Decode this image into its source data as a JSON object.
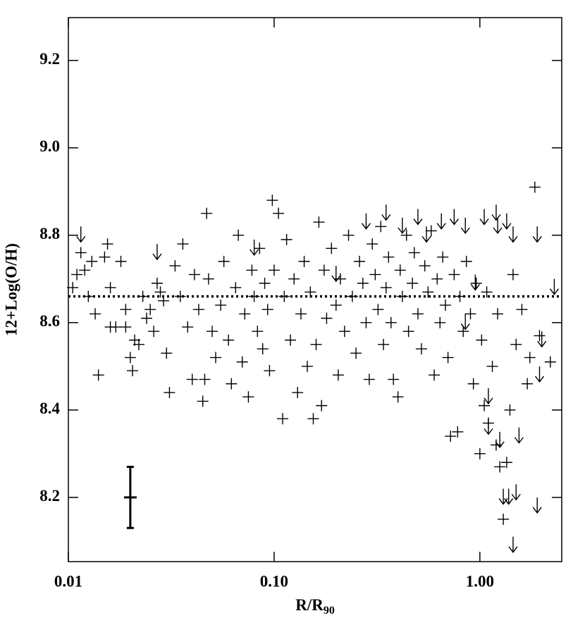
{
  "chart_data": {
    "type": "scatter",
    "x_label": "R/R",
    "x_label_subscript": "90",
    "y_label": "12+Log(O/H)",
    "x_scale": "log",
    "xlim": [
      0.01,
      2.5
    ],
    "xticks": [
      0.01,
      {
        "value": 0.1,
        "label": "0.10"
      },
      {
        "value": 1,
        "label": "1.00"
      }
    ],
    "ylim": [
      8.053,
      9.298
    ],
    "yticks": [
      8.2,
      8.4,
      8.6,
      8.8,
      {
        "value": 9,
        "label": "9.0"
      },
      9.2
    ],
    "color": "#000000",
    "reference_line": 8.66,
    "error_bar": {
      "x": 0.02,
      "y": 8.2,
      "error": 0.07
    },
    "series": [
      {
        "marker": "plus",
        "x": [
          0.0105,
          0.011,
          0.0115,
          0.012,
          0.0125,
          0.013,
          0.0135,
          0.014,
          0.015,
          0.0155,
          0.016,
          0.016,
          0.017,
          0.018,
          0.019,
          0.019,
          0.02,
          0.0205,
          0.021,
          0.022,
          0.023,
          0.024,
          0.025,
          0.026,
          0.027,
          0.028,
          0.029,
          0.03,
          0.031,
          0.033,
          0.035,
          0.036,
          0.038,
          0.04,
          0.041,
          0.043,
          0.045,
          0.046,
          0.047,
          0.048,
          0.05,
          0.052,
          0.055,
          0.057,
          0.06,
          0.062,
          0.065,
          0.067,
          0.07,
          0.072,
          0.075,
          0.078,
          0.08,
          0.083,
          0.085,
          0.088,
          0.09,
          0.093,
          0.095,
          0.098,
          0.1,
          0.105,
          0.11,
          0.112,
          0.115,
          0.12,
          0.125,
          0.13,
          0.135,
          0.14,
          0.145,
          0.15,
          0.155,
          0.16,
          0.165,
          0.17,
          0.175,
          0.18,
          0.19,
          0.2,
          0.205,
          0.21,
          0.22,
          0.23,
          0.24,
          0.25,
          0.26,
          0.27,
          0.28,
          0.29,
          0.3,
          0.31,
          0.32,
          0.33,
          0.34,
          0.35,
          0.36,
          0.37,
          0.38,
          0.4,
          0.41,
          0.42,
          0.44,
          0.45,
          0.47,
          0.48,
          0.5,
          0.52,
          0.54,
          0.56,
          0.58,
          0.6,
          0.62,
          0.64,
          0.66,
          0.68,
          0.7,
          0.72,
          0.75,
          0.78,
          0.8,
          0.83,
          0.86,
          0.9,
          0.93,
          0.96,
          1.0,
          1.02,
          1.05,
          1.08,
          1.1,
          1.15,
          1.2,
          1.22,
          1.25,
          1.3,
          1.35,
          1.4,
          1.45,
          1.5,
          1.6,
          1.7,
          1.75,
          1.85,
          1.95,
          2.2
        ],
        "values": [
          8.68,
          8.71,
          8.76,
          8.72,
          8.66,
          8.74,
          8.62,
          8.48,
          8.75,
          8.78,
          8.68,
          8.59,
          8.59,
          8.74,
          8.63,
          8.59,
          8.52,
          8.49,
          8.56,
          8.55,
          8.66,
          8.61,
          8.63,
          8.58,
          8.69,
          8.67,
          8.65,
          8.53,
          8.44,
          8.73,
          8.66,
          8.78,
          8.59,
          8.47,
          8.71,
          8.63,
          8.42,
          8.47,
          8.85,
          8.7,
          8.58,
          8.52,
          8.64,
          8.74,
          8.56,
          8.46,
          8.68,
          8.8,
          8.51,
          8.62,
          8.43,
          8.72,
          8.66,
          8.58,
          8.77,
          8.54,
          8.69,
          8.63,
          8.49,
          8.88,
          8.72,
          8.85,
          8.38,
          8.66,
          8.79,
          8.56,
          8.7,
          8.44,
          8.62,
          8.74,
          8.5,
          8.67,
          8.38,
          8.55,
          8.83,
          8.41,
          8.72,
          8.61,
          8.77,
          8.64,
          8.48,
          8.7,
          8.58,
          8.8,
          8.66,
          8.53,
          8.74,
          8.69,
          8.6,
          8.47,
          8.78,
          8.71,
          8.63,
          8.82,
          8.55,
          8.68,
          8.75,
          8.6,
          8.47,
          8.43,
          8.72,
          8.66,
          8.8,
          8.58,
          8.69,
          8.76,
          8.62,
          8.54,
          8.73,
          8.67,
          8.81,
          8.48,
          8.7,
          8.6,
          8.75,
          8.64,
          8.52,
          8.34,
          8.71,
          8.35,
          8.66,
          8.58,
          8.74,
          8.62,
          8.46,
          8.69,
          8.3,
          8.56,
          8.41,
          8.67,
          8.37,
          8.5,
          8.32,
          8.62,
          8.27,
          8.15,
          8.28,
          8.4,
          8.71,
          8.55,
          8.63,
          8.46,
          8.52,
          8.91,
          8.57,
          8.51
        ]
      },
      {
        "marker": "arrow-down",
        "x": [
          0.0115,
          0.027,
          0.08,
          0.2,
          0.28,
          0.35,
          0.42,
          0.5,
          0.55,
          0.65,
          0.75,
          0.85,
          0.95,
          1.05,
          1.2,
          1.22,
          1.35,
          1.45,
          1.9,
          2.3,
          1.1,
          1.25,
          1.3,
          1.38,
          1.5,
          1.55,
          1.9,
          1.45,
          1.1,
          0.85,
          1.95,
          2.0
        ],
        "values": [
          8.82,
          8.78,
          8.79,
          8.73,
          8.85,
          8.87,
          8.84,
          8.86,
          8.82,
          8.85,
          8.86,
          8.84,
          8.71,
          8.86,
          8.87,
          8.84,
          8.85,
          8.82,
          8.82,
          8.7,
          8.45,
          8.35,
          8.22,
          8.22,
          8.23,
          8.36,
          8.2,
          8.11,
          8.38,
          8.62,
          8.5,
          8.58
        ]
      }
    ]
  }
}
